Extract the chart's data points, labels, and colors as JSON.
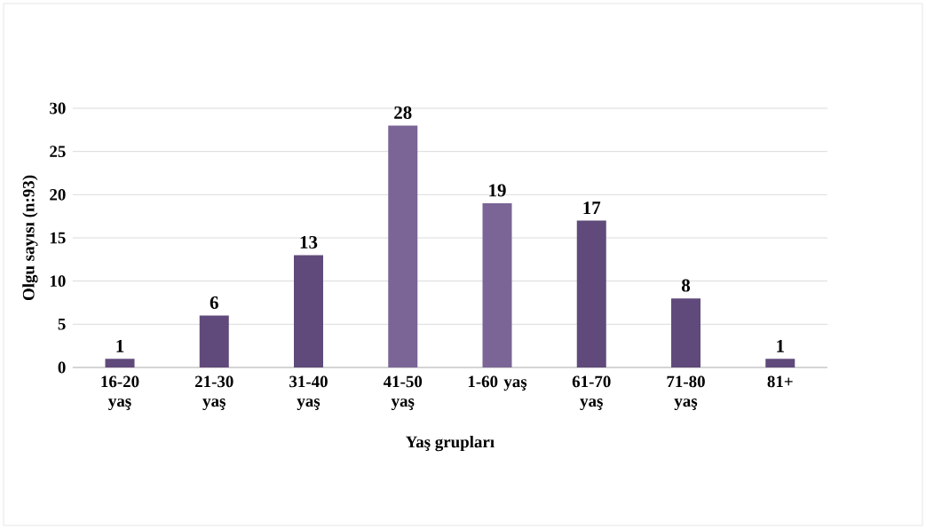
{
  "chart_data": {
    "type": "bar",
    "xlabel": "Yaş grupları",
    "ylabel": "Olgu sayısı (n:93)",
    "categories": [
      "16-20 yaş",
      "21-30 yaş",
      "31-40 yaş",
      "41-50 yaş",
      "1-60 yaş",
      "61-70 yaş",
      "71-80 yaş",
      "81+"
    ],
    "values": [
      1,
      6,
      13,
      28,
      19,
      17,
      8,
      1
    ],
    "colors": [
      "#604a7b",
      "#604a7b",
      "#604a7b",
      "#7a6596",
      "#7a6596",
      "#604a7b",
      "#604a7b",
      "#604a7b"
    ],
    "ylim": [
      0,
      30
    ],
    "yticks": [
      0,
      5,
      10,
      15,
      20,
      25,
      30
    ],
    "grid": "y",
    "data_labels": true
  }
}
